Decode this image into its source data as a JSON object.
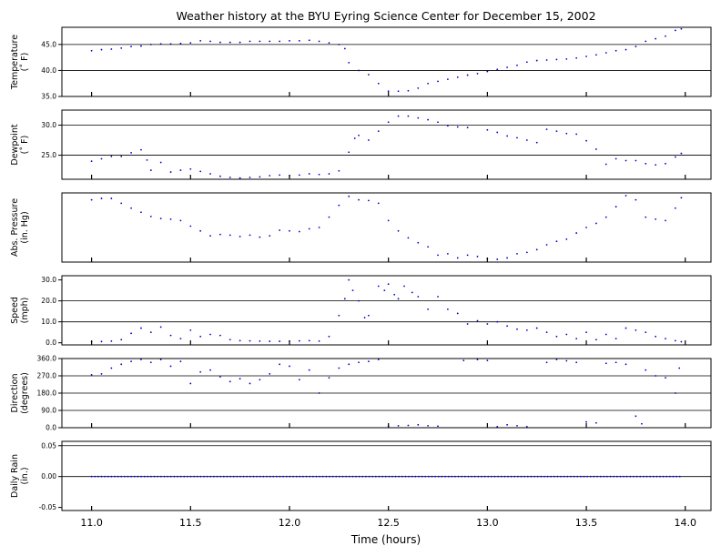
{
  "chart_data": [
    {
      "type": "scatter",
      "title": "Weather history at the BYU Eyring Science Center for December 15, 2002",
      "ylabel": [
        "Temperature",
        "(˚ F)"
      ],
      "ylim": [
        35,
        48.3
      ],
      "yticks": [
        35.0,
        40.0,
        45.0
      ],
      "ytick_labels": [
        "35.0",
        "40.0",
        "45.0"
      ],
      "grid": [
        40.0,
        45.0
      ],
      "color": "#0000cc",
      "points": [
        [
          11.0,
          43.8
        ],
        [
          11.05,
          44.0
        ],
        [
          11.1,
          44.1
        ],
        [
          11.15,
          44.3
        ],
        [
          11.2,
          44.6
        ],
        [
          11.25,
          44.7
        ],
        [
          11.3,
          45.0
        ],
        [
          11.35,
          45.1
        ],
        [
          11.4,
          45.1
        ],
        [
          11.45,
          45.2
        ],
        [
          11.5,
          45.3
        ],
        [
          11.55,
          45.7
        ],
        [
          11.6,
          45.6
        ],
        [
          11.65,
          45.4
        ],
        [
          11.7,
          45.4
        ],
        [
          11.75,
          45.4
        ],
        [
          11.8,
          45.6
        ],
        [
          11.85,
          45.6
        ],
        [
          11.9,
          45.6
        ],
        [
          11.95,
          45.6
        ],
        [
          12.0,
          45.7
        ],
        [
          12.05,
          45.7
        ],
        [
          12.1,
          45.8
        ],
        [
          12.15,
          45.6
        ],
        [
          12.2,
          45.3
        ],
        [
          12.25,
          45.0
        ],
        [
          12.28,
          44.2
        ],
        [
          12.3,
          41.5
        ],
        [
          12.35,
          40.0
        ],
        [
          12.4,
          39.2
        ],
        [
          12.45,
          37.5
        ],
        [
          12.5,
          36.0
        ],
        [
          12.55,
          36.0
        ],
        [
          12.6,
          36.1
        ],
        [
          12.65,
          36.6
        ],
        [
          12.7,
          37.5
        ],
        [
          12.75,
          37.9
        ],
        [
          12.8,
          38.3
        ],
        [
          12.85,
          38.7
        ],
        [
          12.9,
          39.1
        ],
        [
          12.95,
          39.4
        ],
        [
          13.0,
          39.8
        ],
        [
          13.05,
          40.2
        ],
        [
          13.1,
          40.6
        ],
        [
          13.15,
          41.0
        ],
        [
          13.2,
          41.6
        ],
        [
          13.25,
          41.9
        ],
        [
          13.3,
          42.0
        ],
        [
          13.35,
          42.1
        ],
        [
          13.4,
          42.2
        ],
        [
          13.45,
          42.4
        ],
        [
          13.5,
          42.7
        ],
        [
          13.55,
          43.0
        ],
        [
          13.6,
          43.4
        ],
        [
          13.65,
          43.8
        ],
        [
          13.7,
          44.0
        ],
        [
          13.75,
          44.6
        ],
        [
          13.8,
          45.6
        ],
        [
          13.85,
          46.1
        ],
        [
          13.9,
          46.6
        ],
        [
          13.95,
          47.7
        ],
        [
          13.98,
          48.0
        ]
      ]
    },
    {
      "type": "scatter",
      "title": "",
      "ylabel": [
        "Dewpoint",
        "(˚ F)"
      ],
      "ylim": [
        21.0,
        32.5
      ],
      "yticks": [
        25.0,
        30.0
      ],
      "ytick_labels": [
        "25.0",
        "30.0"
      ],
      "grid": [
        25.0,
        30.0
      ],
      "color": "#0000cc",
      "points": [
        [
          11.0,
          24.0
        ],
        [
          11.05,
          24.4
        ],
        [
          11.1,
          24.8
        ],
        [
          11.15,
          24.8
        ],
        [
          11.2,
          25.4
        ],
        [
          11.25,
          25.9
        ],
        [
          11.28,
          24.2
        ],
        [
          11.3,
          22.5
        ],
        [
          11.35,
          23.8
        ],
        [
          11.4,
          22.2
        ],
        [
          11.45,
          22.5
        ],
        [
          11.5,
          22.7
        ],
        [
          11.55,
          22.3
        ],
        [
          11.6,
          21.9
        ],
        [
          11.65,
          21.5
        ],
        [
          11.7,
          21.3
        ],
        [
          11.75,
          21.2
        ],
        [
          11.8,
          21.3
        ],
        [
          11.85,
          21.4
        ],
        [
          11.9,
          21.6
        ],
        [
          11.95,
          21.7
        ],
        [
          12.0,
          21.6
        ],
        [
          12.05,
          21.7
        ],
        [
          12.1,
          21.9
        ],
        [
          12.15,
          21.8
        ],
        [
          12.2,
          21.9
        ],
        [
          12.25,
          22.4
        ],
        [
          12.3,
          25.5
        ],
        [
          12.33,
          27.8
        ],
        [
          12.35,
          28.3
        ],
        [
          12.4,
          27.5
        ],
        [
          12.45,
          29.0
        ],
        [
          12.5,
          30.5
        ],
        [
          12.55,
          31.5
        ],
        [
          12.6,
          31.5
        ],
        [
          12.65,
          31.2
        ],
        [
          12.7,
          30.9
        ],
        [
          12.75,
          30.5
        ],
        [
          12.8,
          29.9
        ],
        [
          12.85,
          29.7
        ],
        [
          12.9,
          29.6
        ],
        [
          13.0,
          29.2
        ],
        [
          13.05,
          28.8
        ],
        [
          13.1,
          28.2
        ],
        [
          13.15,
          27.9
        ],
        [
          13.2,
          27.5
        ],
        [
          13.25,
          27.1
        ],
        [
          13.3,
          29.3
        ],
        [
          13.35,
          29.0
        ],
        [
          13.4,
          28.6
        ],
        [
          13.45,
          28.5
        ],
        [
          13.5,
          27.4
        ],
        [
          13.55,
          26.0
        ],
        [
          13.6,
          23.5
        ],
        [
          13.65,
          24.4
        ],
        [
          13.7,
          24.1
        ],
        [
          13.75,
          24.1
        ],
        [
          13.8,
          23.6
        ],
        [
          13.85,
          23.4
        ],
        [
          13.9,
          23.6
        ],
        [
          13.95,
          24.7
        ],
        [
          13.98,
          25.3
        ]
      ]
    },
    {
      "type": "scatter",
      "title": "",
      "ylabel": [
        "Abs. Pressure",
        "(in. Hg)"
      ],
      "ylim": [
        0,
        1
      ],
      "yticks": [],
      "ytick_labels": [],
      "grid": [],
      "color": "#0000cc",
      "points": [
        [
          11.0,
          0.9
        ],
        [
          11.05,
          0.92
        ],
        [
          11.1,
          0.92
        ],
        [
          11.15,
          0.85
        ],
        [
          11.2,
          0.78
        ],
        [
          11.25,
          0.72
        ],
        [
          11.3,
          0.66
        ],
        [
          11.35,
          0.63
        ],
        [
          11.4,
          0.62
        ],
        [
          11.45,
          0.6
        ],
        [
          11.5,
          0.52
        ],
        [
          11.55,
          0.45
        ],
        [
          11.6,
          0.38
        ],
        [
          11.65,
          0.4
        ],
        [
          11.7,
          0.39
        ],
        [
          11.75,
          0.37
        ],
        [
          11.8,
          0.39
        ],
        [
          11.85,
          0.36
        ],
        [
          11.9,
          0.38
        ],
        [
          11.95,
          0.46
        ],
        [
          12.0,
          0.45
        ],
        [
          12.05,
          0.44
        ],
        [
          12.1,
          0.48
        ],
        [
          12.15,
          0.5
        ],
        [
          12.2,
          0.65
        ],
        [
          12.25,
          0.82
        ],
        [
          12.3,
          0.95
        ],
        [
          12.35,
          0.9
        ],
        [
          12.4,
          0.89
        ],
        [
          12.45,
          0.85
        ],
        [
          12.5,
          0.6
        ],
        [
          12.55,
          0.45
        ],
        [
          12.6,
          0.35
        ],
        [
          12.65,
          0.28
        ],
        [
          12.7,
          0.22
        ],
        [
          12.75,
          0.1
        ],
        [
          12.8,
          0.12
        ],
        [
          12.85,
          0.06
        ],
        [
          12.9,
          0.1
        ],
        [
          12.95,
          0.08
        ],
        [
          13.0,
          0.05
        ],
        [
          13.05,
          0.04
        ],
        [
          13.1,
          0.06
        ],
        [
          13.15,
          0.12
        ],
        [
          13.2,
          0.14
        ],
        [
          13.25,
          0.18
        ],
        [
          13.3,
          0.25
        ],
        [
          13.35,
          0.3
        ],
        [
          13.4,
          0.33
        ],
        [
          13.45,
          0.42
        ],
        [
          13.5,
          0.5
        ],
        [
          13.55,
          0.56
        ],
        [
          13.6,
          0.65
        ],
        [
          13.65,
          0.8
        ],
        [
          13.7,
          0.96
        ],
        [
          13.75,
          0.9
        ],
        [
          13.8,
          0.65
        ],
        [
          13.85,
          0.62
        ],
        [
          13.9,
          0.6
        ],
        [
          13.95,
          0.78
        ],
        [
          13.98,
          0.93
        ]
      ]
    },
    {
      "type": "scatter",
      "title": "",
      "ylabel": [
        "Speed",
        "(mph)"
      ],
      "ylim": [
        -1,
        32
      ],
      "yticks": [
        0.0,
        10.0,
        20.0,
        30.0
      ],
      "ytick_labels": [
        "0.0",
        "10.0",
        "20.0",
        "30.0"
      ],
      "grid": [
        10.0,
        20.0
      ],
      "color": "#0000cc",
      "points": [
        [
          11.0,
          0.5
        ],
        [
          11.05,
          0.6
        ],
        [
          11.1,
          0.8
        ],
        [
          11.15,
          1.5
        ],
        [
          11.2,
          4.5
        ],
        [
          11.25,
          7.0
        ],
        [
          11.3,
          5.0
        ],
        [
          11.35,
          7.5
        ],
        [
          11.4,
          3.5
        ],
        [
          11.45,
          2.0
        ],
        [
          11.5,
          6.0
        ],
        [
          11.55,
          3.0
        ],
        [
          11.6,
          4.0
        ],
        [
          11.65,
          3.5
        ],
        [
          11.7,
          1.5
        ],
        [
          11.75,
          1.0
        ],
        [
          11.8,
          0.9
        ],
        [
          11.85,
          0.8
        ],
        [
          11.9,
          0.7
        ],
        [
          11.95,
          0.7
        ],
        [
          12.0,
          0.8
        ],
        [
          12.05,
          0.9
        ],
        [
          12.1,
          1.0
        ],
        [
          12.15,
          0.8
        ],
        [
          12.2,
          3.0
        ],
        [
          12.25,
          13.0
        ],
        [
          12.28,
          21.0
        ],
        [
          12.3,
          30.0
        ],
        [
          12.32,
          25.0
        ],
        [
          12.35,
          20.0
        ],
        [
          12.38,
          12.0
        ],
        [
          12.4,
          13.0
        ],
        [
          12.45,
          27.0
        ],
        [
          12.48,
          25.0
        ],
        [
          12.5,
          28.0
        ],
        [
          12.53,
          23.0
        ],
        [
          12.55,
          21.0
        ],
        [
          12.58,
          27.0
        ],
        [
          12.62,
          24.0
        ],
        [
          12.65,
          22.0
        ],
        [
          12.7,
          16.0
        ],
        [
          12.75,
          22.0
        ],
        [
          12.8,
          16.0
        ],
        [
          12.85,
          14.0
        ],
        [
          12.9,
          9.0
        ],
        [
          12.95,
          10.5
        ],
        [
          13.0,
          9.0
        ],
        [
          13.05,
          10.0
        ],
        [
          13.1,
          8.0
        ],
        [
          13.15,
          6.5
        ],
        [
          13.2,
          6.0
        ],
        [
          13.25,
          7.0
        ],
        [
          13.3,
          5.0
        ],
        [
          13.35,
          3.0
        ],
        [
          13.4,
          4.0
        ],
        [
          13.45,
          2.0
        ],
        [
          13.5,
          5.0
        ],
        [
          13.55,
          1.5
        ],
        [
          13.6,
          4.0
        ],
        [
          13.65,
          2.0
        ],
        [
          13.7,
          7.0
        ],
        [
          13.75,
          6.0
        ],
        [
          13.8,
          5.0
        ],
        [
          13.85,
          3.0
        ],
        [
          13.9,
          2.0
        ],
        [
          13.95,
          1.0
        ],
        [
          13.98,
          0.5
        ]
      ]
    },
    {
      "type": "scatter",
      "title": "",
      "ylabel": [
        "Direction",
        "(degrees)"
      ],
      "ylim": [
        0,
        360
      ],
      "yticks": [
        0.0,
        90.0,
        180.0,
        270.0,
        360.0
      ],
      "ytick_labels": [
        "0.0",
        "90.0",
        "180.0",
        "270.0",
        "360.0"
      ],
      "grid": [
        90.0,
        180.0,
        270.0
      ],
      "color": "#0000cc",
      "points": [
        [
          11.0,
          275
        ],
        [
          11.05,
          280
        ],
        [
          11.1,
          310
        ],
        [
          11.15,
          330
        ],
        [
          11.2,
          345
        ],
        [
          11.25,
          355
        ],
        [
          11.3,
          340
        ],
        [
          11.35,
          355
        ],
        [
          11.4,
          320
        ],
        [
          11.45,
          345
        ],
        [
          11.5,
          230
        ],
        [
          11.55,
          290
        ],
        [
          11.6,
          300
        ],
        [
          11.65,
          265
        ],
        [
          11.7,
          240
        ],
        [
          11.75,
          255
        ],
        [
          11.8,
          230
        ],
        [
          11.85,
          250
        ],
        [
          11.9,
          280
        ],
        [
          11.95,
          330
        ],
        [
          12.0,
          320
        ],
        [
          12.05,
          250
        ],
        [
          12.1,
          300
        ],
        [
          12.15,
          180
        ],
        [
          12.2,
          260
        ],
        [
          12.25,
          310
        ],
        [
          12.3,
          330
        ],
        [
          12.35,
          340
        ],
        [
          12.4,
          345
        ],
        [
          12.45,
          355
        ],
        [
          12.5,
          8
        ],
        [
          12.55,
          10
        ],
        [
          12.6,
          12
        ],
        [
          12.65,
          15
        ],
        [
          12.7,
          10
        ],
        [
          12.75,
          8
        ],
        [
          12.88,
          350
        ],
        [
          12.95,
          355
        ],
        [
          13.0,
          350
        ],
        [
          13.05,
          5
        ],
        [
          13.1,
          15
        ],
        [
          13.15,
          10
        ],
        [
          13.2,
          5
        ],
        [
          13.3,
          340
        ],
        [
          13.35,
          355
        ],
        [
          13.4,
          348
        ],
        [
          13.45,
          340
        ],
        [
          13.5,
          30
        ],
        [
          13.55,
          25
        ],
        [
          13.6,
          335
        ],
        [
          13.65,
          340
        ],
        [
          13.7,
          330
        ],
        [
          13.75,
          60
        ],
        [
          13.78,
          20
        ],
        [
          13.8,
          300
        ],
        [
          13.85,
          270
        ],
        [
          13.9,
          260
        ],
        [
          13.95,
          180
        ],
        [
          13.97,
          310
        ]
      ]
    },
    {
      "type": "scatter",
      "title": "",
      "ylabel": [
        "Daily Rain",
        "(in.)"
      ],
      "ylim": [
        -0.055,
        0.057
      ],
      "yticks": [
        -0.05,
        0.0,
        0.05
      ],
      "ytick_labels": [
        "-0.05",
        "0.00",
        "0.05"
      ],
      "grid": [
        0.0,
        0.05
      ],
      "color": "#0000cc",
      "x_range": [
        11.0,
        13.98
      ],
      "y_constant": 0.0
    }
  ],
  "x_axis": {
    "label": "Time (hours)",
    "xlim": [
      10.85,
      14.13
    ],
    "ticks": [
      11.0,
      11.5,
      12.0,
      12.5,
      13.0,
      13.5,
      14.0
    ],
    "tick_labels": [
      "11.0",
      "11.5",
      "12.0",
      "12.5",
      "13.0",
      "13.5",
      "14.0"
    ]
  }
}
